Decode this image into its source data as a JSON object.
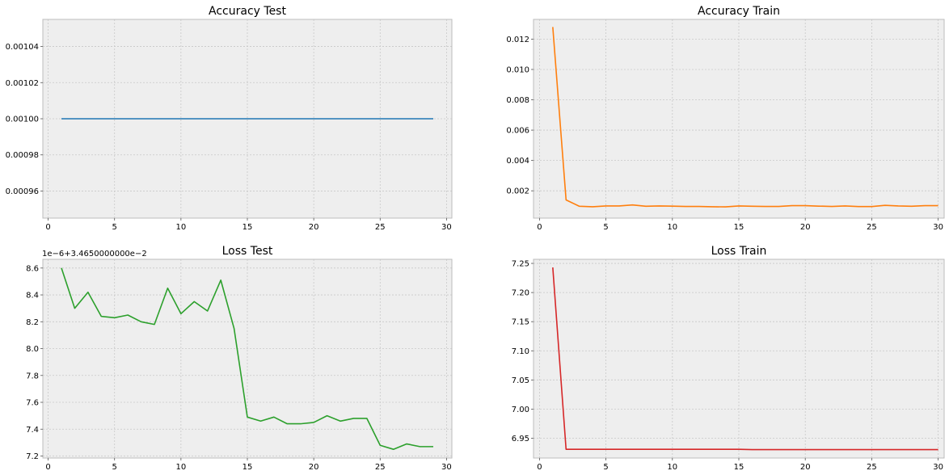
{
  "chart_data": [
    {
      "type": "line",
      "title": "Accuracy Test",
      "offset_text": "",
      "color": "#1f77b4",
      "x": [
        1,
        2,
        3,
        4,
        5,
        6,
        7,
        8,
        9,
        10,
        11,
        12,
        13,
        14,
        15,
        16,
        17,
        18,
        19,
        20,
        21,
        22,
        23,
        24,
        25,
        26,
        27,
        28,
        29
      ],
      "series": [
        {
          "values": [
            0.001,
            0.001,
            0.001,
            0.001,
            0.001,
            0.001,
            0.001,
            0.001,
            0.001,
            0.001,
            0.001,
            0.001,
            0.001,
            0.001,
            0.001,
            0.001,
            0.001,
            0.001,
            0.001,
            0.001,
            0.001,
            0.001,
            0.001,
            0.001,
            0.001,
            0.001,
            0.001,
            0.001,
            0.001
          ]
        }
      ],
      "xlim": [
        -0.4,
        30.4
      ],
      "ylim": [
        0.000945,
        0.001055
      ],
      "xticks": [
        0,
        5,
        10,
        15,
        20,
        25,
        30
      ],
      "xtick_labels": [
        "0",
        "5",
        "10",
        "15",
        "20",
        "25",
        "30"
      ],
      "yticks": [
        0.00096,
        0.00098,
        0.001,
        0.00102,
        0.00104
      ],
      "ytick_labels": [
        "0.00096",
        "0.00098",
        "0.00100",
        "0.00102",
        "0.00104"
      ],
      "grid": true
    },
    {
      "type": "line",
      "title": "Accuracy Train",
      "offset_text": "",
      "color": "#ff7f0e",
      "x": [
        1,
        2,
        3,
        4,
        5,
        6,
        7,
        8,
        9,
        10,
        11,
        12,
        13,
        14,
        15,
        16,
        17,
        18,
        19,
        20,
        21,
        22,
        23,
        24,
        25,
        26,
        27,
        28,
        29,
        30
      ],
      "series": [
        {
          "values": [
            0.0128,
            0.0014,
            0.00098,
            0.00095,
            0.001,
            0.001,
            0.00107,
            0.00098,
            0.001,
            0.00099,
            0.00097,
            0.00097,
            0.00095,
            0.00094,
            0.001,
            0.00098,
            0.00097,
            0.00097,
            0.00102,
            0.00102,
            0.00099,
            0.00097,
            0.001,
            0.00096,
            0.00096,
            0.00104,
            0.001,
            0.00098,
            0.00102,
            0.00102
          ]
        }
      ],
      "xlim": [
        -0.45,
        30.45
      ],
      "ylim": [
        0.0002,
        0.0133
      ],
      "xticks": [
        0,
        5,
        10,
        15,
        20,
        25,
        30
      ],
      "xtick_labels": [
        "0",
        "5",
        "10",
        "15",
        "20",
        "25",
        "30"
      ],
      "yticks": [
        0.002,
        0.004,
        0.006,
        0.008,
        0.01,
        0.012
      ],
      "ytick_labels": [
        "0.002",
        "0.004",
        "0.006",
        "0.008",
        "0.010",
        "0.012"
      ],
      "grid": true
    },
    {
      "type": "line",
      "title": "Loss Test",
      "offset_text": "1e−6+3.4650000000e−2",
      "color": "#2ca02c",
      "x": [
        1,
        2,
        3,
        4,
        5,
        6,
        7,
        8,
        9,
        10,
        11,
        12,
        13,
        14,
        15,
        16,
        17,
        18,
        19,
        20,
        21,
        22,
        23,
        24,
        25,
        26,
        27,
        28,
        29
      ],
      "series": [
        {
          "values": [
            8.6,
            8.3,
            8.42,
            8.24,
            8.23,
            8.25,
            8.2,
            8.18,
            8.45,
            8.26,
            8.35,
            8.28,
            8.51,
            8.15,
            7.49,
            7.46,
            7.49,
            7.44,
            7.44,
            7.45,
            7.5,
            7.46,
            7.48,
            7.48,
            7.28,
            7.25,
            7.29,
            7.27,
            7.27
          ]
        }
      ],
      "xlim": [
        -0.4,
        30.4
      ],
      "ylim": [
        7.185,
        8.665
      ],
      "xticks": [
        0,
        5,
        10,
        15,
        20,
        25,
        30
      ],
      "xtick_labels": [
        "0",
        "5",
        "10",
        "15",
        "20",
        "25",
        "30"
      ],
      "yticks": [
        7.2,
        7.4,
        7.6,
        7.8,
        8.0,
        8.2,
        8.4,
        8.6
      ],
      "ytick_labels": [
        "7.2",
        "7.4",
        "7.6",
        "7.8",
        "8.0",
        "8.2",
        "8.4",
        "8.6"
      ],
      "grid": true
    },
    {
      "type": "line",
      "title": "Loss Train",
      "offset_text": "",
      "color": "#d62728",
      "x": [
        1,
        2,
        3,
        4,
        5,
        6,
        7,
        8,
        9,
        10,
        11,
        12,
        13,
        14,
        15,
        16,
        17,
        18,
        19,
        20,
        21,
        22,
        23,
        24,
        25,
        26,
        27,
        28,
        29,
        30
      ],
      "series": [
        {
          "values": [
            7.243,
            6.931,
            6.931,
            6.931,
            6.931,
            6.931,
            6.931,
            6.931,
            6.931,
            6.931,
            6.931,
            6.931,
            6.931,
            6.931,
            6.931,
            6.9305,
            6.9305,
            6.9305,
            6.9305,
            6.9305,
            6.9305,
            6.9305,
            6.9305,
            6.9305,
            6.9305,
            6.9305,
            6.9305,
            6.9305,
            6.9305,
            6.9305
          ]
        }
      ],
      "xlim": [
        -0.45,
        30.45
      ],
      "ylim": [
        6.916,
        7.257
      ],
      "xticks": [
        0,
        5,
        10,
        15,
        20,
        25,
        30
      ],
      "xtick_labels": [
        "0",
        "5",
        "10",
        "15",
        "20",
        "25",
        "30"
      ],
      "yticks": [
        6.95,
        7.0,
        7.05,
        7.1,
        7.15,
        7.2,
        7.25
      ],
      "ytick_labels": [
        "6.95",
        "7.00",
        "7.05",
        "7.10",
        "7.15",
        "7.20",
        "7.25"
      ],
      "grid": true
    }
  ]
}
